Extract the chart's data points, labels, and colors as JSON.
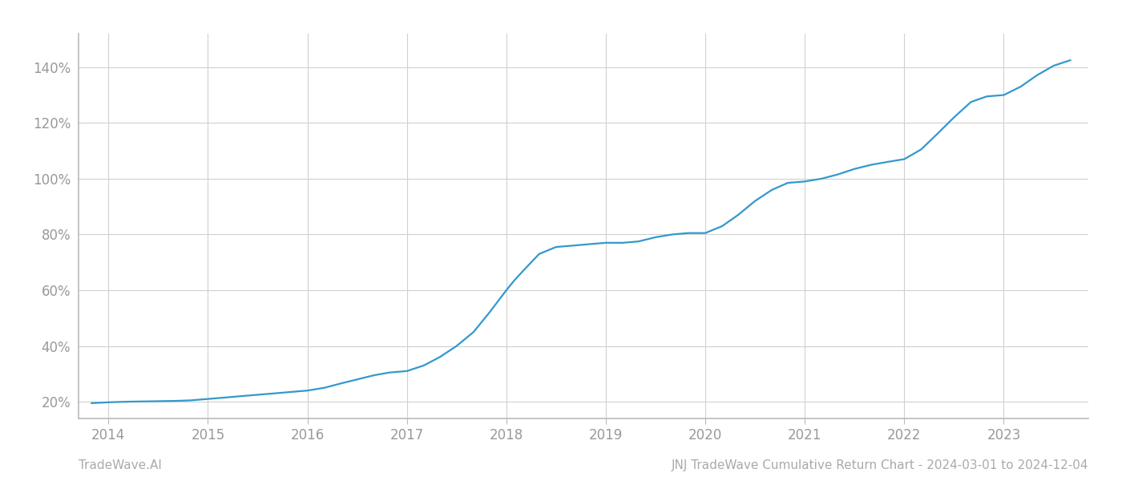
{
  "x_values": [
    2013.83,
    2014.0,
    2014.17,
    2014.33,
    2014.5,
    2014.67,
    2014.83,
    2015.0,
    2015.17,
    2015.33,
    2015.5,
    2015.67,
    2015.83,
    2016.0,
    2016.17,
    2016.33,
    2016.5,
    2016.67,
    2016.83,
    2017.0,
    2017.17,
    2017.33,
    2017.5,
    2017.67,
    2017.83,
    2018.0,
    2018.08,
    2018.17,
    2018.33,
    2018.5,
    2018.67,
    2018.83,
    2019.0,
    2019.17,
    2019.33,
    2019.5,
    2019.67,
    2019.83,
    2020.0,
    2020.17,
    2020.33,
    2020.5,
    2020.67,
    2020.83,
    2021.0,
    2021.17,
    2021.33,
    2021.5,
    2021.67,
    2021.83,
    2022.0,
    2022.17,
    2022.33,
    2022.5,
    2022.67,
    2022.83,
    2023.0,
    2023.17,
    2023.33,
    2023.5,
    2023.67
  ],
  "y_values": [
    19.5,
    19.8,
    20.0,
    20.1,
    20.2,
    20.3,
    20.5,
    21.0,
    21.5,
    22.0,
    22.5,
    23.0,
    23.5,
    24.0,
    25.0,
    26.5,
    28.0,
    29.5,
    30.5,
    31.0,
    33.0,
    36.0,
    40.0,
    45.0,
    52.0,
    60.0,
    63.5,
    67.0,
    73.0,
    75.5,
    76.0,
    76.5,
    77.0,
    77.0,
    77.5,
    79.0,
    80.0,
    80.5,
    80.5,
    83.0,
    87.0,
    92.0,
    96.0,
    98.5,
    99.0,
    100.0,
    101.5,
    103.5,
    105.0,
    106.0,
    107.0,
    110.5,
    116.0,
    122.0,
    127.5,
    129.5,
    130.0,
    133.0,
    137.0,
    140.5,
    142.5
  ],
  "line_color": "#3399cc",
  "line_width": 1.6,
  "background_color": "#ffffff",
  "grid_color": "#d0d0d0",
  "xlim": [
    2013.7,
    2023.85
  ],
  "ylim": [
    14,
    152
  ],
  "yticks": [
    20,
    40,
    60,
    80,
    100,
    120,
    140
  ],
  "xticks": [
    2014,
    2015,
    2016,
    2017,
    2018,
    2019,
    2020,
    2021,
    2022,
    2023
  ],
  "tick_color": "#999999",
  "tick_fontsize": 12,
  "footer_left": "TradeWave.AI",
  "footer_right": "JNJ TradeWave Cumulative Return Chart - 2024-03-01 to 2024-12-04",
  "footer_fontsize": 11,
  "footer_color": "#aaaaaa"
}
